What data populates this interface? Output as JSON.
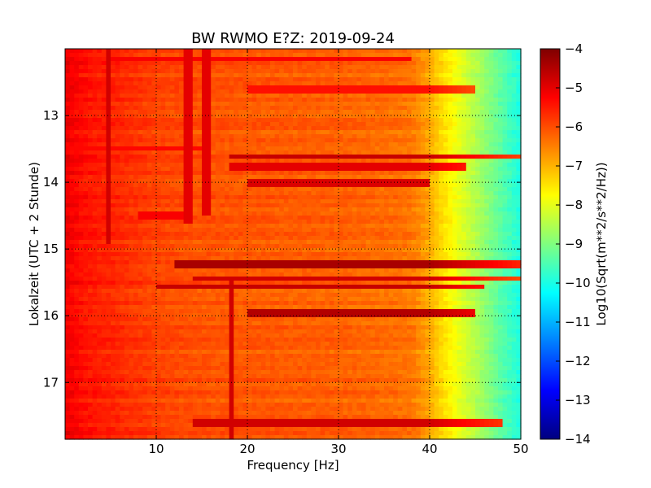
{
  "chart_data": {
    "type": "heatmap",
    "title": "BW RWMO E?Z: 2019-09-24",
    "xlabel": "Frequency [Hz]",
    "ylabel": "Lokalzeit (UTC + 2 Stunde)",
    "xlim": [
      0,
      50
    ],
    "ylim": [
      17.85,
      12.0
    ],
    "y_inverted": true,
    "x_ticks": [
      10,
      20,
      30,
      40,
      50
    ],
    "y_ticks": [
      13,
      14,
      15,
      16,
      17
    ],
    "grid": true,
    "colorbar": {
      "label": "Log10(Sqrt(m**2/s**2/Hz))",
      "range": [
        -14,
        -4
      ],
      "ticks": [
        -4,
        -5,
        -6,
        -7,
        -8,
        -9,
        -10,
        -11,
        -12,
        -13,
        -14
      ],
      "colormap": "jet"
    },
    "spectral_profile": {
      "frequency_hz": [
        0,
        2,
        5,
        10,
        15,
        20,
        25,
        30,
        35,
        38,
        40,
        41,
        42,
        43,
        44,
        45,
        46,
        47,
        48,
        49,
        50
      ],
      "log10_amplitude": [
        -5.1,
        -5.4,
        -5.6,
        -5.9,
        -6.05,
        -6.1,
        -6.15,
        -6.2,
        -6.3,
        -6.4,
        -6.9,
        -7.3,
        -7.6,
        -7.9,
        -8.2,
        -8.5,
        -8.8,
        -9.1,
        -9.4,
        -9.7,
        -10.0
      ]
    },
    "band_events": [
      {
        "time": 12.15,
        "f_start": 5,
        "f_end": 38,
        "level": -5.2
      },
      {
        "time": 12.6,
        "f_start": 20,
        "f_end": 45,
        "level": -5.4
      },
      {
        "time": 13.5,
        "f_start": 0,
        "f_end": 15,
        "level": -5.3
      },
      {
        "time": 13.6,
        "f_start": 18,
        "f_end": 50,
        "level": -4.7
      },
      {
        "time": 13.78,
        "f_start": 18,
        "f_end": 44,
        "level": -5.0
      },
      {
        "time": 14.0,
        "f_start": 20,
        "f_end": 40,
        "level": -4.9
      },
      {
        "time": 14.5,
        "f_start": 8,
        "f_end": 13,
        "level": -5.2
      },
      {
        "time": 15.23,
        "f_start": 12,
        "f_end": 50,
        "level": -4.4
      },
      {
        "time": 15.45,
        "f_start": 14,
        "f_end": 50,
        "level": -4.8
      },
      {
        "time": 15.58,
        "f_start": 10,
        "f_end": 46,
        "level": -4.7
      },
      {
        "time": 15.95,
        "f_start": 20,
        "f_end": 45,
        "level": -4.5
      },
      {
        "time": 17.62,
        "f_start": 14,
        "f_end": 48,
        "level": -4.8
      }
    ],
    "line_features": [
      {
        "frequency_hz": 4.9,
        "t_start": 12.0,
        "t_end": 14.9,
        "level": -4.8
      },
      {
        "frequency_hz": 13.5,
        "t_start": 12.0,
        "t_end": 14.6,
        "level": -5.0
      },
      {
        "frequency_hz": 15.5,
        "t_start": 12.0,
        "t_end": 14.5,
        "level": -5.0
      },
      {
        "frequency_hz": 18.2,
        "t_start": 15.4,
        "t_end": 17.85,
        "level": -4.8
      }
    ]
  }
}
